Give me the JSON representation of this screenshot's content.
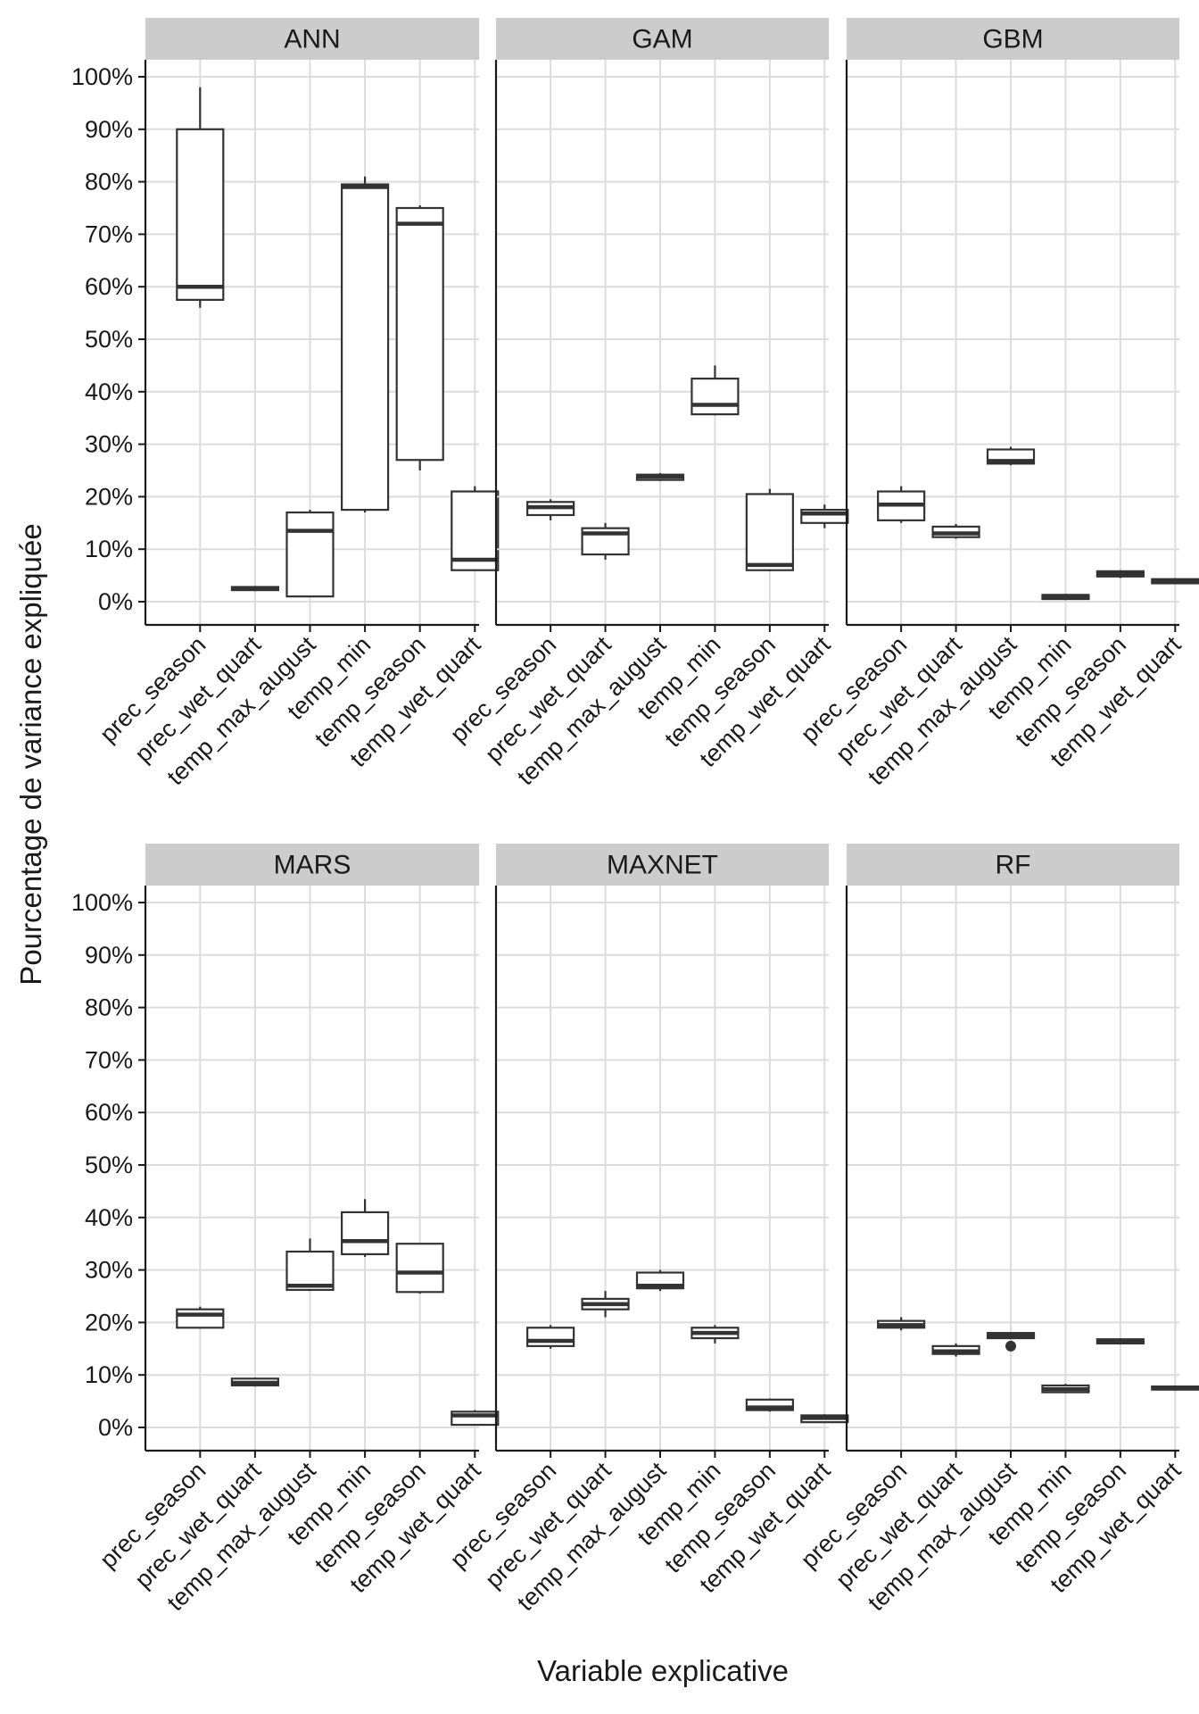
{
  "chart_data": {
    "type": "boxplot",
    "xlabel": "Variable explicative",
    "ylabel": "Pourcentage de variance expliquée",
    "ylim": [
      -4,
      104
    ],
    "y_ticks": [
      0,
      10,
      20,
      30,
      40,
      50,
      60,
      70,
      80,
      90,
      100
    ],
    "y_tick_labels": [
      "0%",
      "10%",
      "20%",
      "30%",
      "40%",
      "50%",
      "60%",
      "70%",
      "80%",
      "90%",
      "100%"
    ],
    "categories": [
      "prec_season",
      "prec_wet_quart",
      "temp_max_august",
      "temp_min",
      "temp_season",
      "temp_wet_quart"
    ],
    "colors": {
      "strip": "#cccccc",
      "box": "#333333",
      "grid": "#dcdcdc"
    },
    "panels": [
      {
        "name": "ANN",
        "boxes": [
          {
            "min": 56,
            "q1": 57.5,
            "median": 60,
            "q3": 90,
            "max": 98,
            "outliers": []
          },
          {
            "min": 2,
            "q1": 2.2,
            "median": 2.5,
            "q3": 2.8,
            "max": 3,
            "outliers": []
          },
          {
            "min": 1,
            "q1": 1,
            "median": 13.5,
            "q3": 17,
            "max": 17.5,
            "outliers": []
          },
          {
            "min": 17,
            "q1": 17.5,
            "median": 79,
            "q3": 79.5,
            "max": 81,
            "outliers": []
          },
          {
            "min": 25,
            "q1": 27,
            "median": 72,
            "q3": 75,
            "max": 75.5,
            "outliers": []
          },
          {
            "min": 6,
            "q1": 6,
            "median": 8,
            "q3": 21,
            "max": 22,
            "outliers": []
          }
        ]
      },
      {
        "name": "GAM",
        "boxes": [
          {
            "min": 15.5,
            "q1": 16.5,
            "median": 18,
            "q3": 19,
            "max": 19.5,
            "outliers": []
          },
          {
            "min": 8,
            "q1": 9,
            "median": 13,
            "q3": 14,
            "max": 15,
            "outliers": []
          },
          {
            "min": 23,
            "q1": 23.2,
            "median": 23.8,
            "q3": 24.2,
            "max": 24.5,
            "outliers": []
          },
          {
            "min": 35.5,
            "q1": 35.7,
            "median": 37.5,
            "q3": 42.5,
            "max": 45,
            "outliers": []
          },
          {
            "min": 5.8,
            "q1": 6,
            "median": 7,
            "q3": 20.5,
            "max": 21.5,
            "outliers": []
          },
          {
            "min": 14,
            "q1": 15,
            "median": 16.8,
            "q3": 17.5,
            "max": 18.5,
            "outliers": []
          }
        ]
      },
      {
        "name": "GBM",
        "boxes": [
          {
            "min": 15,
            "q1": 15.5,
            "median": 18.5,
            "q3": 21,
            "max": 22,
            "outliers": []
          },
          {
            "min": 12,
            "q1": 12.3,
            "median": 13,
            "q3": 14.3,
            "max": 14.8,
            "outliers": []
          },
          {
            "min": 26,
            "q1": 26.3,
            "median": 26.8,
            "q3": 29,
            "max": 29.5,
            "outliers": []
          },
          {
            "min": 0.3,
            "q1": 0.5,
            "median": 1,
            "q3": 1.3,
            "max": 1.5,
            "outliers": []
          },
          {
            "min": 4.5,
            "q1": 4.8,
            "median": 5.3,
            "q3": 5.8,
            "max": 6,
            "outliers": []
          },
          {
            "min": 3.3,
            "q1": 3.5,
            "median": 3.8,
            "q3": 4.3,
            "max": 4.5,
            "outliers": []
          }
        ]
      },
      {
        "name": "MARS",
        "boxes": [
          {
            "min": 19,
            "q1": 19,
            "median": 21.5,
            "q3": 22.5,
            "max": 23,
            "outliers": []
          },
          {
            "min": 7.8,
            "q1": 8,
            "median": 8.5,
            "q3": 9.3,
            "max": 9.5,
            "outliers": []
          },
          {
            "min": 26,
            "q1": 26.2,
            "median": 27,
            "q3": 33.5,
            "max": 36,
            "outliers": []
          },
          {
            "min": 32.5,
            "q1": 33,
            "median": 35.5,
            "q3": 41,
            "max": 43.5,
            "outliers": []
          },
          {
            "min": 25.5,
            "q1": 25.8,
            "median": 29.5,
            "q3": 35,
            "max": 35,
            "outliers": []
          },
          {
            "min": 0.5,
            "q1": 0.5,
            "median": 2.3,
            "q3": 3,
            "max": 3.3,
            "outliers": []
          }
        ]
      },
      {
        "name": "MAXNET",
        "boxes": [
          {
            "min": 15,
            "q1": 15.5,
            "median": 16.5,
            "q3": 19,
            "max": 19.5,
            "outliers": []
          },
          {
            "min": 21,
            "q1": 22.5,
            "median": 23.5,
            "q3": 24.5,
            "max": 26,
            "outliers": []
          },
          {
            "min": 26,
            "q1": 26.5,
            "median": 27,
            "q3": 29.5,
            "max": 30,
            "outliers": []
          },
          {
            "min": 16,
            "q1": 17,
            "median": 18,
            "q3": 19,
            "max": 19.5,
            "outliers": []
          },
          {
            "min": 3,
            "q1": 3.3,
            "median": 3.8,
            "q3": 5.3,
            "max": 5.5,
            "outliers": []
          },
          {
            "min": 1,
            "q1": 1,
            "median": 1.8,
            "q3": 2.3,
            "max": 2.5,
            "outliers": []
          }
        ]
      },
      {
        "name": "RF",
        "boxes": [
          {
            "min": 18.5,
            "q1": 19,
            "median": 19.5,
            "q3": 20.3,
            "max": 21,
            "outliers": []
          },
          {
            "min": 13.5,
            "q1": 14,
            "median": 14.5,
            "q3": 15.5,
            "max": 16,
            "outliers": []
          },
          {
            "min": 16.8,
            "q1": 17,
            "median": 17.5,
            "q3": 18,
            "max": 18,
            "outliers": [
              15.5
            ]
          },
          {
            "min": 6.5,
            "q1": 6.7,
            "median": 7.3,
            "q3": 8,
            "max": 8.3,
            "outliers": []
          },
          {
            "min": 15.8,
            "q1": 16,
            "median": 16.3,
            "q3": 16.8,
            "max": 17,
            "outliers": []
          },
          {
            "min": 7,
            "q1": 7.2,
            "median": 7.5,
            "q3": 7.8,
            "max": 8,
            "outliers": []
          }
        ]
      }
    ]
  }
}
